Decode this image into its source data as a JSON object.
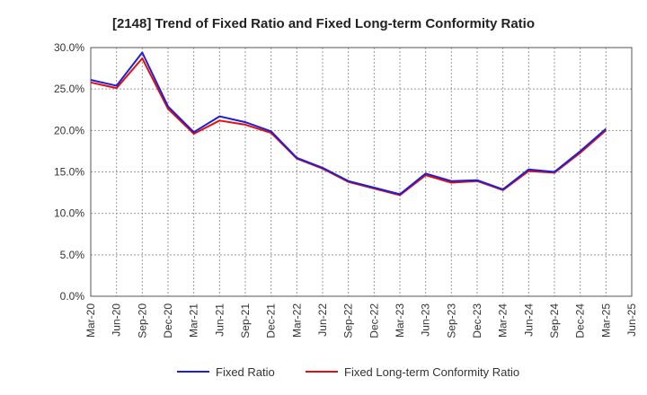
{
  "chart_data": {
    "type": "line",
    "title": "[2148]  Trend of Fixed Ratio and Fixed Long-term Conformity Ratio",
    "xlabel": "",
    "ylabel": "",
    "ylim": [
      0,
      30
    ],
    "y_ticks": [
      "0.0%",
      "5.0%",
      "10.0%",
      "15.0%",
      "20.0%",
      "25.0%",
      "30.0%"
    ],
    "x_tick_labels": [
      "Mar-20",
      "Jun-20",
      "Sep-20",
      "Dec-20",
      "Mar-21",
      "Jun-21",
      "Sep-21",
      "Dec-21",
      "Mar-22",
      "Jun-22",
      "Sep-22",
      "Dec-22",
      "Mar-23",
      "Jun-23",
      "Sep-23",
      "Dec-23",
      "Mar-24",
      "Jun-24",
      "Sep-24",
      "Dec-24",
      "Mar-25",
      "Jun-25"
    ],
    "categories": [
      "Mar-20",
      "Jun-20",
      "Sep-20",
      "Dec-20",
      "Mar-21",
      "Jun-21",
      "Sep-21",
      "Dec-21",
      "Mar-22",
      "Jun-22",
      "Sep-22",
      "Dec-22",
      "Mar-23",
      "Jun-23",
      "Sep-23",
      "Dec-23",
      "Mar-24",
      "Jun-24",
      "Sep-24",
      "Dec-24",
      "Mar-25"
    ],
    "grid": true,
    "legend_position": "bottom",
    "series": [
      {
        "name": "Fixed Ratio",
        "color": "#1f1fd6",
        "values": [
          26.1,
          25.4,
          29.4,
          22.9,
          19.8,
          21.7,
          21.0,
          19.9,
          16.7,
          15.5,
          13.9,
          13.1,
          12.3,
          14.8,
          13.9,
          14.0,
          12.9,
          15.3,
          15.0,
          17.5,
          20.2
        ]
      },
      {
        "name": "Fixed Long-term Conformity Ratio",
        "color": "#e01010",
        "values": [
          25.8,
          25.1,
          28.7,
          22.6,
          19.6,
          21.2,
          20.7,
          19.7,
          16.6,
          15.4,
          13.8,
          13.0,
          12.2,
          14.6,
          13.7,
          13.9,
          12.8,
          15.1,
          14.9,
          17.3,
          20.0
        ]
      }
    ]
  }
}
